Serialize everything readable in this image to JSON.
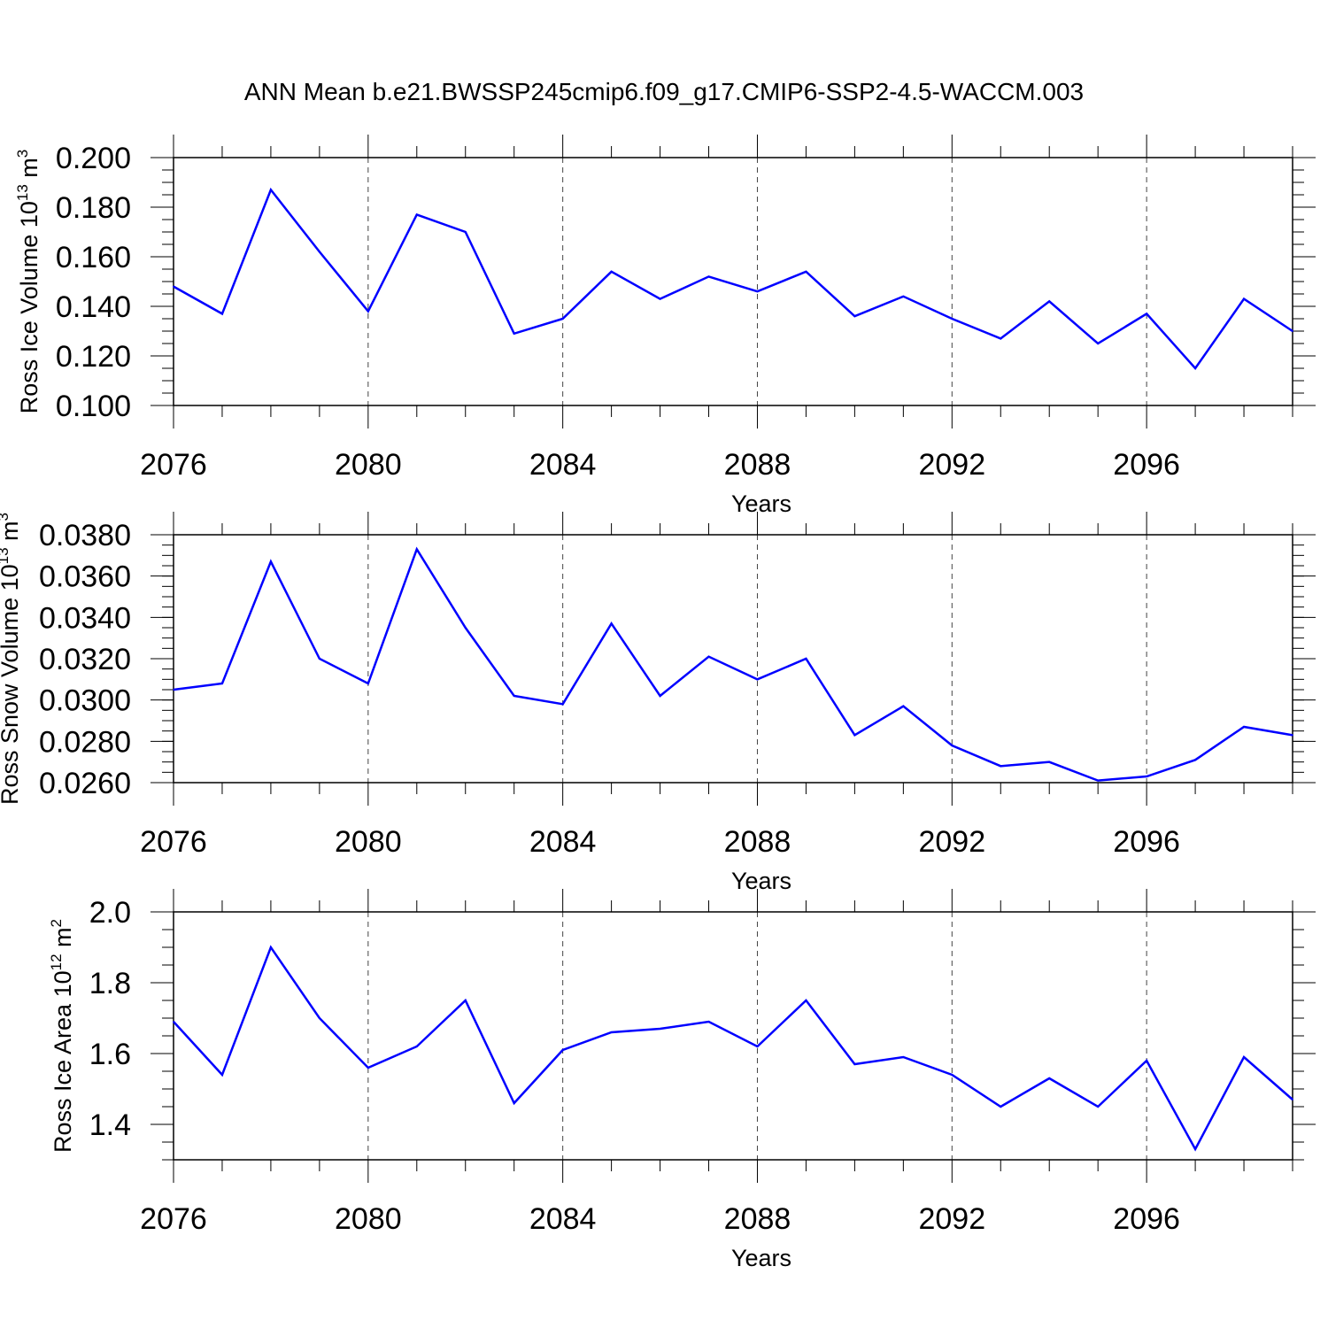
{
  "title": "ANN Mean b.e21.BWSSP245cmip6.f09_g17.CMIP6-SSP2-4.5-WACCM.003",
  "chart_data": [
    {
      "type": "line",
      "title": "ANN Mean b.e21.BWSSP245cmip6.f09_g17.CMIP6-SSP2-4.5-WACCM.003",
      "xlabel": "Years",
      "ylabel": {
        "text": "Ross Ice Volume 10",
        "sup": "13",
        "unit": " m",
        "unit_sup": "3"
      },
      "x": [
        2076,
        2077,
        2078,
        2079,
        2080,
        2081,
        2082,
        2083,
        2084,
        2085,
        2086,
        2087,
        2088,
        2089,
        2090,
        2091,
        2092,
        2093,
        2094,
        2095,
        2096,
        2097,
        2098,
        2099
      ],
      "values": [
        0.148,
        0.137,
        0.187,
        0.162,
        0.138,
        0.177,
        0.17,
        0.129,
        0.135,
        0.154,
        0.143,
        0.152,
        0.146,
        0.154,
        0.136,
        0.144,
        0.135,
        0.127,
        0.142,
        0.125,
        0.137,
        0.115,
        0.143,
        0.13
      ],
      "xlim": [
        2076,
        2099
      ],
      "ylim": [
        0.1,
        0.2
      ],
      "xticks": [
        "2076",
        "2080",
        "2084",
        "2088",
        "2092",
        "2096"
      ],
      "yticks": [
        "0.100",
        "0.120",
        "0.140",
        "0.160",
        "0.180",
        "0.200"
      ],
      "line_color": "#0000ff",
      "grid": "vertical dashed at major x ticks"
    },
    {
      "type": "line",
      "xlabel": "Years",
      "ylabel": {
        "text": "Ross Snow Volume 10",
        "sup": "13",
        "unit": " m",
        "unit_sup": "3"
      },
      "x": [
        2076,
        2077,
        2078,
        2079,
        2080,
        2081,
        2082,
        2083,
        2084,
        2085,
        2086,
        2087,
        2088,
        2089,
        2090,
        2091,
        2092,
        2093,
        2094,
        2095,
        2096,
        2097,
        2098,
        2099
      ],
      "values": [
        0.0305,
        0.0308,
        0.0367,
        0.032,
        0.0308,
        0.0373,
        0.0335,
        0.0302,
        0.0298,
        0.0337,
        0.0302,
        0.0321,
        0.031,
        0.032,
        0.0283,
        0.0297,
        0.0278,
        0.0268,
        0.027,
        0.0261,
        0.0263,
        0.0271,
        0.0287,
        0.0283
      ],
      "xlim": [
        2076,
        2099
      ],
      "ylim": [
        0.026,
        0.038
      ],
      "xticks": [
        "2076",
        "2080",
        "2084",
        "2088",
        "2092",
        "2096"
      ],
      "yticks": [
        "0.0260",
        "0.0280",
        "0.0300",
        "0.0320",
        "0.0340",
        "0.0360",
        "0.0380"
      ],
      "line_color": "#0000ff",
      "grid": "vertical dashed at major x ticks"
    },
    {
      "type": "line",
      "xlabel": "Years",
      "ylabel": {
        "text": "Ross Ice Area 10",
        "sup": "12",
        "unit": " m",
        "unit_sup": "2"
      },
      "x": [
        2076,
        2077,
        2078,
        2079,
        2080,
        2081,
        2082,
        2083,
        2084,
        2085,
        2086,
        2087,
        2088,
        2089,
        2090,
        2091,
        2092,
        2093,
        2094,
        2095,
        2096,
        2097,
        2098,
        2099
      ],
      "values": [
        1.69,
        1.54,
        1.9,
        1.7,
        1.56,
        1.62,
        1.75,
        1.46,
        1.61,
        1.66,
        1.67,
        1.69,
        1.62,
        1.75,
        1.57,
        1.59,
        1.54,
        1.45,
        1.53,
        1.45,
        1.58,
        1.33,
        1.59,
        1.47
      ],
      "xlim": [
        2076,
        2099
      ],
      "ylim": [
        1.3,
        2.0
      ],
      "xticks": [
        "2076",
        "2080",
        "2084",
        "2088",
        "2092",
        "2096"
      ],
      "yticks": [
        "1.4",
        "1.6",
        "1.8",
        "2.0"
      ],
      "line_color": "#0000ff",
      "grid": "vertical dashed at major x ticks"
    }
  ]
}
